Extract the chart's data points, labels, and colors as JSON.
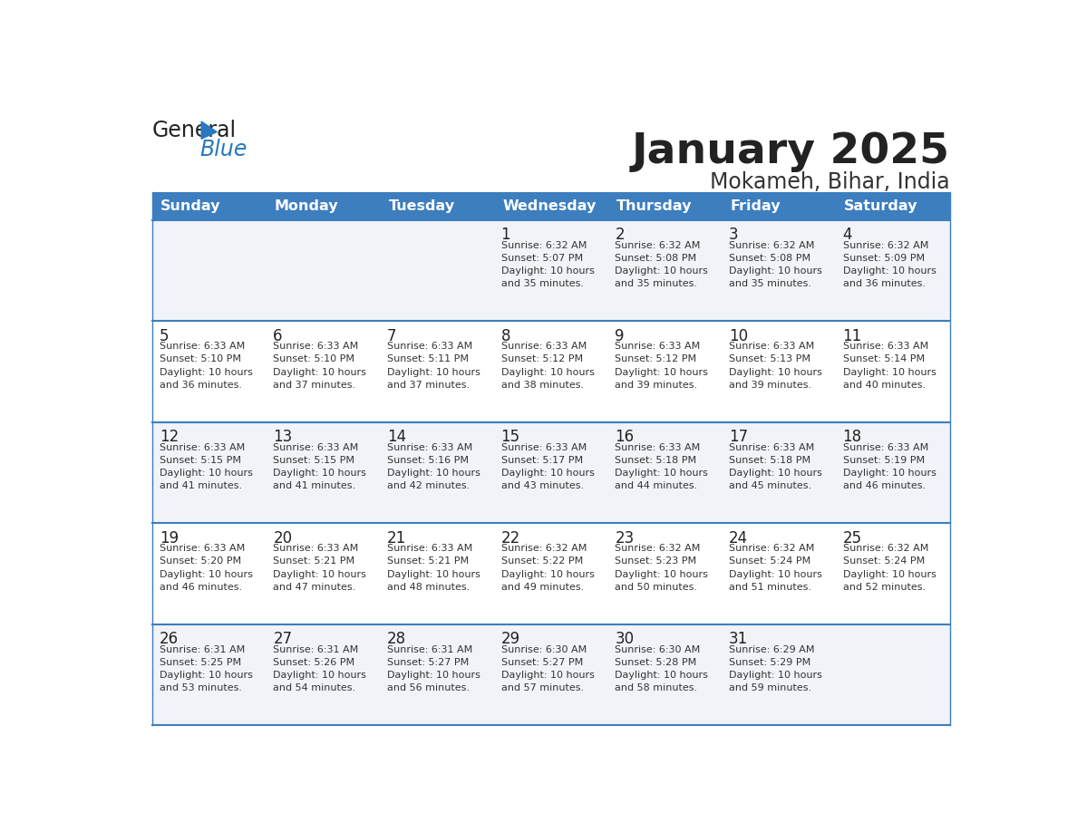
{
  "title": "January 2025",
  "subtitle": "Mokameh, Bihar, India",
  "header_color": "#3d7ebf",
  "header_text_color": "#ffffff",
  "cell_bg_even": "#f0f4f8",
  "cell_bg_odd": "#ffffff",
  "border_color": "#3d7ebf",
  "days_of_week": [
    "Sunday",
    "Monday",
    "Tuesday",
    "Wednesday",
    "Thursday",
    "Friday",
    "Saturday"
  ],
  "text_color": "#333333",
  "day_num_color": "#222222",
  "logo_general_color": "#222222",
  "logo_blue_color": "#2878c0",
  "weeks": [
    [
      {
        "day": null,
        "sunrise": null,
        "sunset": null,
        "daylight": null
      },
      {
        "day": null,
        "sunrise": null,
        "sunset": null,
        "daylight": null
      },
      {
        "day": null,
        "sunrise": null,
        "sunset": null,
        "daylight": null
      },
      {
        "day": 1,
        "sunrise": "6:32 AM",
        "sunset": "5:07 PM",
        "daylight": "10 hours and 35 minutes."
      },
      {
        "day": 2,
        "sunrise": "6:32 AM",
        "sunset": "5:08 PM",
        "daylight": "10 hours and 35 minutes."
      },
      {
        "day": 3,
        "sunrise": "6:32 AM",
        "sunset": "5:08 PM",
        "daylight": "10 hours and 35 minutes."
      },
      {
        "day": 4,
        "sunrise": "6:32 AM",
        "sunset": "5:09 PM",
        "daylight": "10 hours and 36 minutes."
      }
    ],
    [
      {
        "day": 5,
        "sunrise": "6:33 AM",
        "sunset": "5:10 PM",
        "daylight": "10 hours and 36 minutes."
      },
      {
        "day": 6,
        "sunrise": "6:33 AM",
        "sunset": "5:10 PM",
        "daylight": "10 hours and 37 minutes."
      },
      {
        "day": 7,
        "sunrise": "6:33 AM",
        "sunset": "5:11 PM",
        "daylight": "10 hours and 37 minutes."
      },
      {
        "day": 8,
        "sunrise": "6:33 AM",
        "sunset": "5:12 PM",
        "daylight": "10 hours and 38 minutes."
      },
      {
        "day": 9,
        "sunrise": "6:33 AM",
        "sunset": "5:12 PM",
        "daylight": "10 hours and 39 minutes."
      },
      {
        "day": 10,
        "sunrise": "6:33 AM",
        "sunset": "5:13 PM",
        "daylight": "10 hours and 39 minutes."
      },
      {
        "day": 11,
        "sunrise": "6:33 AM",
        "sunset": "5:14 PM",
        "daylight": "10 hours and 40 minutes."
      }
    ],
    [
      {
        "day": 12,
        "sunrise": "6:33 AM",
        "sunset": "5:15 PM",
        "daylight": "10 hours and 41 minutes."
      },
      {
        "day": 13,
        "sunrise": "6:33 AM",
        "sunset": "5:15 PM",
        "daylight": "10 hours and 41 minutes."
      },
      {
        "day": 14,
        "sunrise": "6:33 AM",
        "sunset": "5:16 PM",
        "daylight": "10 hours and 42 minutes."
      },
      {
        "day": 15,
        "sunrise": "6:33 AM",
        "sunset": "5:17 PM",
        "daylight": "10 hours and 43 minutes."
      },
      {
        "day": 16,
        "sunrise": "6:33 AM",
        "sunset": "5:18 PM",
        "daylight": "10 hours and 44 minutes."
      },
      {
        "day": 17,
        "sunrise": "6:33 AM",
        "sunset": "5:18 PM",
        "daylight": "10 hours and 45 minutes."
      },
      {
        "day": 18,
        "sunrise": "6:33 AM",
        "sunset": "5:19 PM",
        "daylight": "10 hours and 46 minutes."
      }
    ],
    [
      {
        "day": 19,
        "sunrise": "6:33 AM",
        "sunset": "5:20 PM",
        "daylight": "10 hours and 46 minutes."
      },
      {
        "day": 20,
        "sunrise": "6:33 AM",
        "sunset": "5:21 PM",
        "daylight": "10 hours and 47 minutes."
      },
      {
        "day": 21,
        "sunrise": "6:33 AM",
        "sunset": "5:21 PM",
        "daylight": "10 hours and 48 minutes."
      },
      {
        "day": 22,
        "sunrise": "6:32 AM",
        "sunset": "5:22 PM",
        "daylight": "10 hours and 49 minutes."
      },
      {
        "day": 23,
        "sunrise": "6:32 AM",
        "sunset": "5:23 PM",
        "daylight": "10 hours and 50 minutes."
      },
      {
        "day": 24,
        "sunrise": "6:32 AM",
        "sunset": "5:24 PM",
        "daylight": "10 hours and 51 minutes."
      },
      {
        "day": 25,
        "sunrise": "6:32 AM",
        "sunset": "5:24 PM",
        "daylight": "10 hours and 52 minutes."
      }
    ],
    [
      {
        "day": 26,
        "sunrise": "6:31 AM",
        "sunset": "5:25 PM",
        "daylight": "10 hours and 53 minutes."
      },
      {
        "day": 27,
        "sunrise": "6:31 AM",
        "sunset": "5:26 PM",
        "daylight": "10 hours and 54 minutes."
      },
      {
        "day": 28,
        "sunrise": "6:31 AM",
        "sunset": "5:27 PM",
        "daylight": "10 hours and 56 minutes."
      },
      {
        "day": 29,
        "sunrise": "6:30 AM",
        "sunset": "5:27 PM",
        "daylight": "10 hours and 57 minutes."
      },
      {
        "day": 30,
        "sunrise": "6:30 AM",
        "sunset": "5:28 PM",
        "daylight": "10 hours and 58 minutes."
      },
      {
        "day": 31,
        "sunrise": "6:29 AM",
        "sunset": "5:29 PM",
        "daylight": "10 hours and 59 minutes."
      },
      {
        "day": null,
        "sunrise": null,
        "sunset": null,
        "daylight": null
      }
    ]
  ]
}
